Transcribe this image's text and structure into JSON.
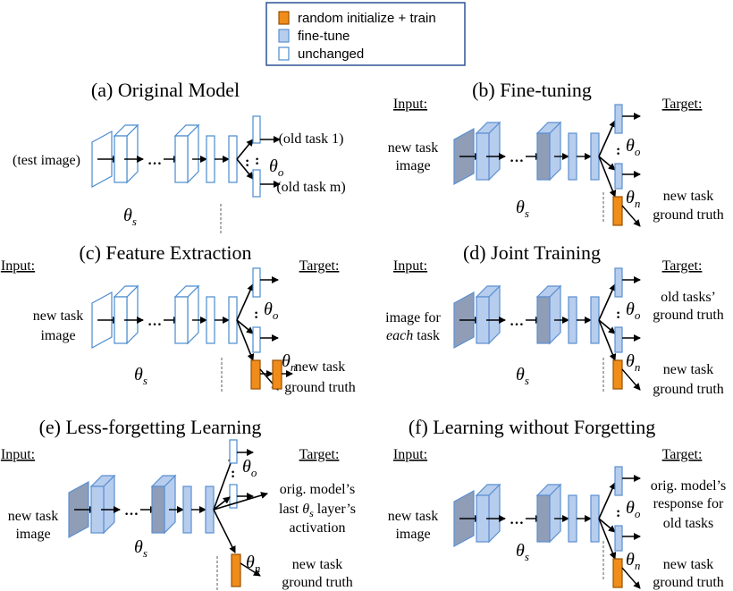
{
  "colors": {
    "train": "#F08C1A",
    "train_stroke": "#9A5000",
    "finetune_fill": "#B7CDEE",
    "finetune_stroke": "#5B8FD0",
    "finetune_dark": "#8F9DB7",
    "unchanged_fill": "#FFFFFF",
    "unchanged_stroke": "#4A8CCF"
  },
  "legend": {
    "train": "random initialize + train",
    "finetune": "fine-tune",
    "unchanged": "unchanged"
  },
  "panels": [
    {
      "id": "a",
      "title": "(a) Original Model",
      "input_label": "",
      "target_label": "",
      "input_text": [
        "(test image)"
      ],
      "old_task_text": [
        "(old task 1)",
        "(old task m)"
      ],
      "new_task_text": []
    },
    {
      "id": "b",
      "title": "(b) Fine-tuning",
      "input_label": "Input:",
      "target_label": "Target:",
      "input_text": [
        "new task",
        "image"
      ],
      "old_task_text": [],
      "new_task_text": [
        "new task",
        "ground truth"
      ]
    },
    {
      "id": "c",
      "title": "(c) Feature Extraction",
      "input_label": "Input:",
      "target_label": "Target:",
      "input_text": [
        "new task",
        "image"
      ],
      "old_task_text": [],
      "new_task_text": [
        "new task",
        "ground truth"
      ]
    },
    {
      "id": "d",
      "title": "(d) Joint Training",
      "input_label": "Input:",
      "target_label": "Target:",
      "input_text": [
        "image for",
        "each task"
      ],
      "old_task_text": [
        "old tasks’",
        "ground truth"
      ],
      "new_task_text": [
        "new task",
        "ground truth"
      ]
    },
    {
      "id": "e",
      "title": "(e) Less-forgetting Learning",
      "input_label": "Input:",
      "target_label": "Target:",
      "input_text": [
        "new task",
        "image"
      ],
      "old_task_text": [
        "orig. model’s",
        "last θs layer’s",
        "activation"
      ],
      "new_task_text": [
        "new task",
        "ground truth"
      ]
    },
    {
      "id": "f",
      "title": "(f) Learning without Forgetting",
      "input_label": "Input:",
      "target_label": "Target:",
      "input_text": [
        "new task",
        "image"
      ],
      "old_task_text": [
        "orig. model’s",
        "response for",
        "old tasks"
      ],
      "new_task_text": [
        "new task",
        "ground truth"
      ]
    }
  ],
  "symbols": {
    "theta": "θ",
    "s": "s",
    "o": "o",
    "n": "n",
    "ellipsis": "…",
    "vdots": "⋮"
  }
}
